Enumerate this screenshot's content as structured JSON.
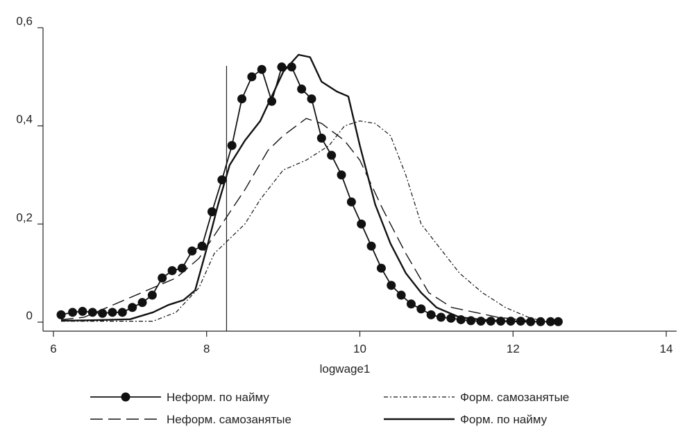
{
  "chart_data": {
    "type": "line",
    "xlabel": "logwage1",
    "ylabel": "",
    "xlim": [
      6,
      14
    ],
    "ylim": [
      0,
      0.6
    ],
    "xticks": [
      6,
      8,
      10,
      12,
      14
    ],
    "xtick_labels": [
      "6",
      "8",
      "10",
      "12",
      "14"
    ],
    "yticks": [
      0,
      0.2,
      0.4,
      0.6
    ],
    "ytick_labels": [
      "0",
      "0,2",
      "0,4",
      "0,6"
    ],
    "vline_x": 8.26,
    "grid": false,
    "legend_position": "bottom",
    "series": [
      {
        "name": "Неформ. по найму",
        "style": "solid-markers",
        "x": [
          6.1,
          6.25,
          6.38,
          6.51,
          6.64,
          6.77,
          6.9,
          7.03,
          7.16,
          7.29,
          7.42,
          7.55,
          7.68,
          7.81,
          7.94,
          8.07,
          8.2,
          8.33,
          8.46,
          8.59,
          8.72,
          8.85,
          8.98,
          9.11,
          9.24,
          9.37,
          9.5,
          9.63,
          9.76,
          9.89,
          10.02,
          10.15,
          10.28,
          10.41,
          10.54,
          10.67,
          10.8,
          10.93,
          11.06,
          11.19,
          11.32,
          11.45,
          11.58,
          11.71,
          11.84,
          11.97,
          12.1,
          12.23,
          12.36,
          12.49,
          12.59
        ],
        "y": [
          0.015,
          0.02,
          0.022,
          0.02,
          0.018,
          0.02,
          0.02,
          0.03,
          0.04,
          0.055,
          0.09,
          0.105,
          0.11,
          0.145,
          0.155,
          0.225,
          0.29,
          0.36,
          0.455,
          0.5,
          0.515,
          0.45,
          0.52,
          0.52,
          0.475,
          0.455,
          0.375,
          0.34,
          0.3,
          0.245,
          0.2,
          0.155,
          0.11,
          0.075,
          0.055,
          0.037,
          0.027,
          0.015,
          0.01,
          0.008,
          0.005,
          0.003,
          0.002,
          0.002,
          0.002,
          0.002,
          0.002,
          0.001,
          0.001,
          0.001,
          0.001
        ]
      },
      {
        "name": "Неформ. самозанятые",
        "style": "long-dash",
        "x": [
          6.1,
          6.4,
          6.7,
          7.0,
          7.3,
          7.6,
          7.9,
          8.2,
          8.5,
          8.8,
          9.0,
          9.3,
          9.5,
          9.8,
          10.0,
          10.3,
          10.6,
          10.9,
          11.2,
          11.5,
          11.8,
          12.1,
          12.3
        ],
        "y": [
          0.005,
          0.01,
          0.03,
          0.05,
          0.07,
          0.09,
          0.13,
          0.2,
          0.27,
          0.35,
          0.38,
          0.415,
          0.405,
          0.37,
          0.33,
          0.23,
          0.14,
          0.06,
          0.03,
          0.02,
          0.01,
          0.005,
          0.002
        ]
      },
      {
        "name": "Форм. самозанятые",
        "style": "dash-dot",
        "x": [
          6.1,
          6.5,
          7.0,
          7.3,
          7.6,
          7.9,
          8.1,
          8.3,
          8.5,
          8.7,
          9.0,
          9.3,
          9.6,
          9.8,
          10.0,
          10.2,
          10.4,
          10.6,
          10.8,
          11.0,
          11.3,
          11.6,
          11.9,
          12.2,
          12.4
        ],
        "y": [
          0.002,
          0.002,
          0.002,
          0.002,
          0.02,
          0.07,
          0.14,
          0.17,
          0.2,
          0.25,
          0.31,
          0.33,
          0.36,
          0.4,
          0.41,
          0.405,
          0.38,
          0.3,
          0.2,
          0.16,
          0.1,
          0.06,
          0.03,
          0.01,
          0.002
        ]
      },
      {
        "name": "Форм. по найму",
        "style": "solid-thick",
        "x": [
          6.1,
          6.5,
          7.0,
          7.3,
          7.5,
          7.7,
          7.85,
          8.0,
          8.15,
          8.3,
          8.5,
          8.7,
          9.0,
          9.2,
          9.35,
          9.5,
          9.7,
          9.85,
          10.0,
          10.2,
          10.4,
          10.6,
          10.8,
          11.0,
          11.3,
          11.6,
          11.9,
          12.2
        ],
        "y": [
          0.003,
          0.004,
          0.006,
          0.02,
          0.035,
          0.045,
          0.065,
          0.15,
          0.24,
          0.32,
          0.37,
          0.41,
          0.51,
          0.545,
          0.54,
          0.49,
          0.47,
          0.46,
          0.36,
          0.24,
          0.16,
          0.1,
          0.06,
          0.03,
          0.01,
          0.005,
          0.002,
          0.001
        ]
      }
    ]
  }
}
